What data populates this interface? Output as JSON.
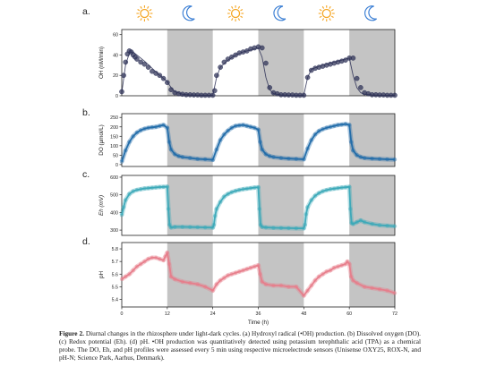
{
  "figure": {
    "caption_label": "Figure 2.",
    "caption_text": "Diurnal changes in the rhizosphere under light-dark cycles. (a) Hydroxyl radical (•OH) production. (b) Dissolved oxygen (DO). (c) Redox potential (Eh). (d) pH. •OH production was quantitatively detected using potassium terephthalic acid (TPA) as a chemical probe. The DO, Eh, and pH profiles were assessed every 5 min using respective microelectrode sensors (Unisense OXY25, ROX-N, and pH-N; Science Park, Aarhus, Denmark).",
    "xlabel": "Time (h)",
    "x_ticks": [
      0,
      12,
      24,
      36,
      48,
      60,
      72
    ],
    "dark_periods": [
      [
        12,
        24
      ],
      [
        36,
        48
      ],
      [
        60,
        72
      ]
    ],
    "light_icons": [
      {
        "type": "sun-icon",
        "center_h": 6
      },
      {
        "type": "moon-icon",
        "center_h": 18
      },
      {
        "type": "sun-icon",
        "center_h": 30
      },
      {
        "type": "moon-icon",
        "center_h": 42
      },
      {
        "type": "sun-icon",
        "center_h": 54
      },
      {
        "type": "moon-icon",
        "center_h": 66
      }
    ],
    "colors": {
      "sun": "#f5a623",
      "moon": "#3b7fd4",
      "dark_band": "#c4c4c4",
      "oh": "#2b2f55",
      "do": "#1f6aa8",
      "eh": "#3aa8b8",
      "ph": "#e77c8a"
    }
  },
  "chart_data": [
    {
      "panel": "a.",
      "type": "scatter",
      "ylabel": "OH (nM/min)",
      "ylim": [
        0,
        65
      ],
      "yticks": [
        0,
        20,
        40,
        60
      ],
      "series": [
        {
          "values_h": [
            0,
            0.5,
            1,
            1.5,
            2,
            2.5,
            3,
            3.5,
            4,
            5,
            6,
            7,
            8,
            9,
            10,
            11,
            12,
            13,
            14,
            15,
            16,
            17,
            18,
            19,
            20,
            21,
            22,
            23,
            24,
            24.5,
            25,
            26,
            27,
            28,
            29,
            30,
            31,
            32,
            33,
            34,
            35,
            36,
            37,
            38,
            39,
            40,
            41,
            42,
            43,
            44,
            45,
            46,
            47,
            48,
            49,
            50,
            51,
            52,
            53,
            54,
            55,
            56,
            57,
            58,
            59,
            60,
            61,
            62,
            63,
            64,
            65,
            66,
            67,
            68,
            69,
            70,
            71,
            72
          ],
          "values": [
            4,
            20,
            33,
            41,
            44,
            43,
            40,
            38,
            36,
            33,
            31,
            28,
            24,
            22,
            20,
            17,
            13,
            6,
            3,
            2,
            1.5,
            1,
            1,
            0.8,
            0.8,
            0.5,
            0.5,
            0.5,
            0.5,
            5,
            20,
            28,
            33,
            36,
            38,
            40,
            42,
            43,
            44,
            46,
            47,
            48,
            47,
            32,
            8,
            3,
            2,
            1,
            1,
            0.8,
            0.8,
            0.5,
            0.5,
            0.5,
            18,
            25,
            27,
            28,
            29,
            30,
            31,
            32,
            33,
            34,
            35,
            37,
            37,
            17,
            8,
            3,
            2,
            1,
            1,
            0.8,
            0.8,
            0.5,
            0.5,
            0.5
          ],
          "curve_h": [
            0,
            1,
            2,
            3,
            4,
            6,
            8,
            10,
            12,
            13,
            14,
            16,
            18,
            20,
            22,
            24,
            25,
            26,
            28,
            30,
            32,
            34,
            36,
            37,
            38,
            39,
            40,
            42,
            44,
            46,
            48,
            49,
            50,
            52,
            54,
            56,
            58,
            60,
            61,
            62,
            63,
            64,
            66,
            68,
            70,
            72
          ],
          "curve": [
            3,
            30,
            42,
            43,
            40,
            34,
            27,
            20,
            14,
            8,
            4,
            1.5,
            0.8,
            0.5,
            0.5,
            0.5,
            18,
            28,
            35,
            40,
            43,
            45,
            47,
            38,
            18,
            6,
            2,
            0.8,
            0.5,
            0.5,
            0.5,
            18,
            26,
            29,
            31,
            33,
            35,
            37,
            20,
            8,
            3,
            1.5,
            0.8,
            0.5,
            0.5,
            0.5
          ]
        }
      ]
    },
    {
      "panel": "b.",
      "type": "line",
      "ylabel": "DO (µmol/L)",
      "ylim": [
        -10,
        270
      ],
      "yticks": [
        0,
        50,
        100,
        150,
        200,
        250
      ],
      "series": [
        {
          "x": [
            0,
            1,
            2,
            3,
            4,
            5,
            6,
            7,
            8,
            9,
            10,
            11,
            12,
            12.5,
            13,
            14,
            15,
            16,
            18,
            20,
            22,
            24,
            25,
            26,
            27,
            28,
            29,
            30,
            31,
            32,
            33,
            34,
            35,
            36,
            36.5,
            37,
            38,
            39,
            40,
            42,
            44,
            46,
            48,
            49,
            50,
            51,
            52,
            53,
            54,
            55,
            56,
            57,
            58,
            59,
            60,
            60.5,
            61,
            62,
            63,
            64,
            66,
            68,
            70,
            72
          ],
          "y": [
            15,
            75,
            120,
            150,
            170,
            182,
            190,
            195,
            198,
            200,
            205,
            210,
            195,
            120,
            80,
            55,
            45,
            40,
            35,
            30,
            28,
            25,
            80,
            130,
            160,
            180,
            195,
            205,
            208,
            210,
            205,
            200,
            195,
            185,
            120,
            80,
            55,
            45,
            40,
            35,
            32,
            30,
            28,
            85,
            130,
            160,
            178,
            188,
            195,
            200,
            205,
            210,
            212,
            215,
            210,
            120,
            75,
            50,
            40,
            35,
            32,
            30,
            28,
            27
          ]
        }
      ]
    },
    {
      "panel": "c.",
      "type": "line",
      "ylabel": "Eh (mV)",
      "ylim": [
        270,
        610
      ],
      "yticks": [
        300,
        400,
        500,
        600
      ],
      "series": [
        {
          "x": [
            0,
            0.5,
            1,
            2,
            3,
            4,
            5,
            6,
            7,
            8,
            9,
            10,
            11,
            12,
            12.3,
            12.6,
            13,
            14,
            16,
            18,
            20,
            22,
            24,
            24.3,
            24.6,
            25,
            26,
            27,
            28,
            29,
            30,
            31,
            32,
            33,
            34,
            35,
            36,
            36.3,
            36.6,
            37,
            38,
            40,
            42,
            44,
            46,
            48,
            48.3,
            48.6,
            49,
            50,
            51,
            52,
            53,
            54,
            55,
            56,
            57,
            58,
            59,
            60,
            60.3,
            60.6,
            61,
            62,
            63,
            64,
            66,
            68,
            70,
            72
          ],
          "y": [
            385,
            430,
            470,
            505,
            520,
            528,
            532,
            536,
            538,
            540,
            542,
            544,
            545,
            546,
            420,
            330,
            315,
            318,
            318,
            317,
            316,
            315,
            314,
            330,
            380,
            420,
            460,
            490,
            505,
            515,
            522,
            528,
            532,
            535,
            538,
            541,
            543,
            420,
            330,
            318,
            315,
            313,
            312,
            311,
            310,
            310,
            330,
            390,
            430,
            470,
            495,
            510,
            520,
            527,
            532,
            535,
            538,
            541,
            543,
            545,
            420,
            340,
            335,
            345,
            355,
            345,
            335,
            328,
            325,
            322
          ]
        }
      ]
    },
    {
      "panel": "d.",
      "type": "line",
      "ylabel": "pH",
      "ylim": [
        5.34,
        5.85
      ],
      "yticks": [
        5.4,
        5.5,
        5.6,
        5.7,
        5.8
      ],
      "series": [
        {
          "x": [
            0,
            1,
            2,
            3,
            4,
            5,
            6,
            7,
            8,
            9,
            10,
            11,
            11.5,
            12,
            12.5,
            13,
            14,
            16,
            18,
            20,
            22,
            24,
            25,
            26,
            27,
            28,
            29,
            30,
            31,
            32,
            33,
            34,
            35,
            36,
            36.5,
            37,
            38,
            40,
            42,
            44,
            46,
            48,
            49,
            50,
            51,
            52,
            53,
            54,
            55,
            56,
            57,
            58,
            59,
            59.5,
            60,
            60.5,
            61,
            62,
            64,
            66,
            68,
            70,
            72
          ],
          "y": [
            5.56,
            5.58,
            5.6,
            5.63,
            5.66,
            5.68,
            5.7,
            5.72,
            5.73,
            5.73,
            5.72,
            5.71,
            5.74,
            5.77,
            5.68,
            5.58,
            5.56,
            5.54,
            5.53,
            5.52,
            5.5,
            5.47,
            5.52,
            5.55,
            5.57,
            5.59,
            5.6,
            5.61,
            5.62,
            5.63,
            5.64,
            5.65,
            5.66,
            5.67,
            5.6,
            5.54,
            5.52,
            5.51,
            5.51,
            5.5,
            5.5,
            5.43,
            5.47,
            5.51,
            5.55,
            5.58,
            5.6,
            5.62,
            5.63,
            5.65,
            5.66,
            5.67,
            5.68,
            5.7,
            5.68,
            5.58,
            5.55,
            5.53,
            5.5,
            5.49,
            5.48,
            5.47,
            5.45
          ]
        }
      ]
    }
  ]
}
